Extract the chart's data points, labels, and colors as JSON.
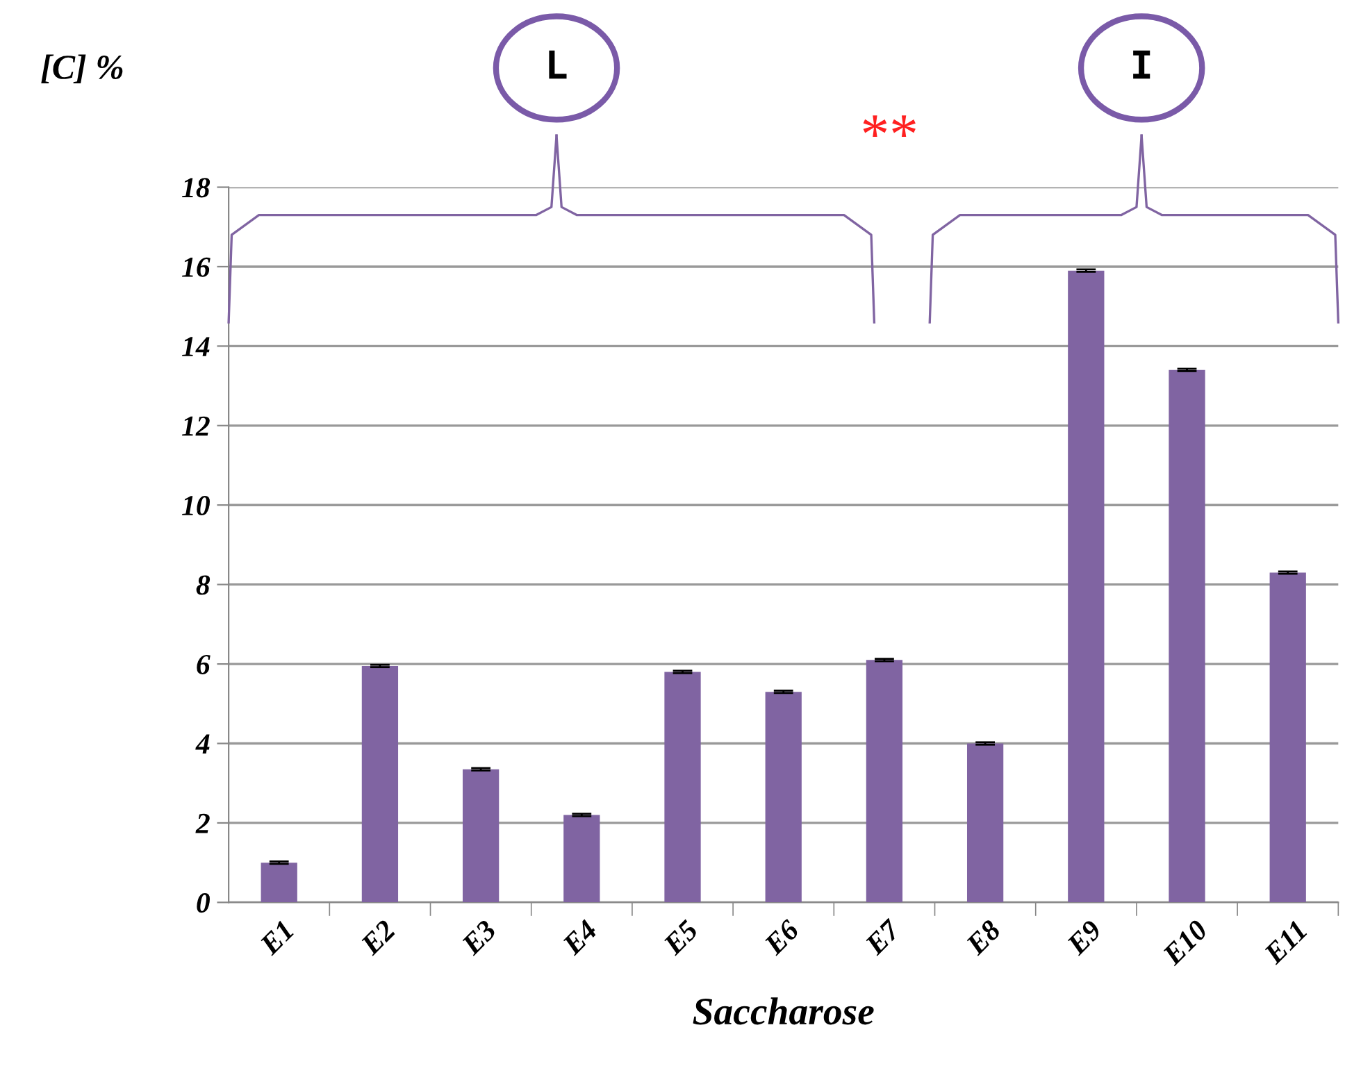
{
  "chart_data": {
    "type": "bar",
    "xlabel": "Saccharose",
    "ylabel": "[C] %",
    "categories": [
      "E1",
      "E2",
      "E3",
      "E4",
      "E5",
      "E6",
      "E7",
      "E8",
      "E9",
      "E10",
      "E11"
    ],
    "values": [
      1.0,
      5.95,
      3.35,
      2.2,
      5.8,
      5.3,
      6.1,
      4.0,
      15.9,
      13.4,
      8.3
    ],
    "errors": [
      0.03,
      0.03,
      0.03,
      0.03,
      0.03,
      0.03,
      0.03,
      0.03,
      0.03,
      0.03,
      0.03
    ],
    "color": "#8064a2",
    "ylim": [
      0,
      18
    ],
    "yticks": [
      0,
      2,
      4,
      6,
      8,
      10,
      12,
      14,
      16,
      18
    ],
    "grid": "y",
    "annotations": [
      "L",
      "I",
      "**"
    ]
  }
}
